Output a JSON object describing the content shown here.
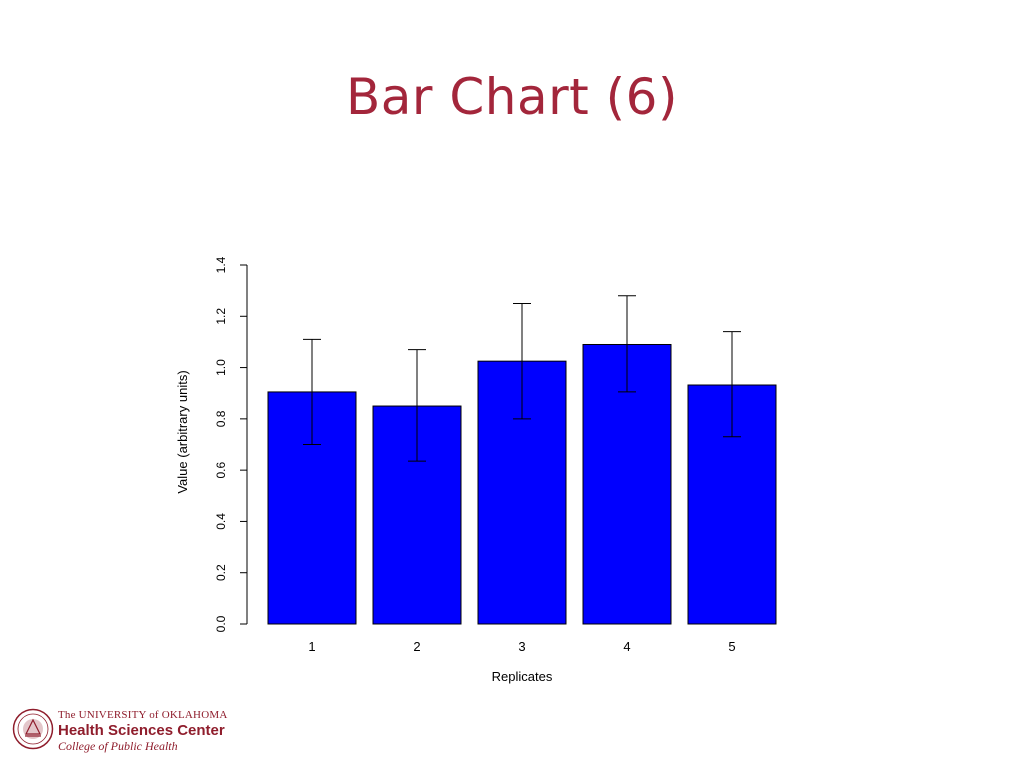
{
  "slide": {
    "title": "Bar Chart (6)"
  },
  "chart_data": {
    "type": "bar",
    "categories": [
      "1",
      "2",
      "3",
      "4",
      "5"
    ],
    "values": [
      0.905,
      0.85,
      1.025,
      1.09,
      0.932
    ],
    "error_bars": {
      "lower": [
        0.7,
        0.635,
        0.8,
        0.905,
        0.73
      ],
      "upper": [
        1.11,
        1.07,
        1.25,
        1.28,
        1.14
      ]
    },
    "title": "",
    "xlabel": "Replicates",
    "ylabel": "Value (arbitrary units)",
    "ylim": [
      0,
      1.4
    ],
    "yticks": [
      "0.0",
      "0.2",
      "0.4",
      "0.6",
      "0.8",
      "1.0",
      "1.2",
      "1.4"
    ],
    "grid": false,
    "bar_color": "#0000ff"
  },
  "logo": {
    "line1": "The UNIVERSITY of OKLAHOMA",
    "line2": "Health Sciences Center",
    "line3": "College of Public Health",
    "color": "#8f1d2c"
  }
}
